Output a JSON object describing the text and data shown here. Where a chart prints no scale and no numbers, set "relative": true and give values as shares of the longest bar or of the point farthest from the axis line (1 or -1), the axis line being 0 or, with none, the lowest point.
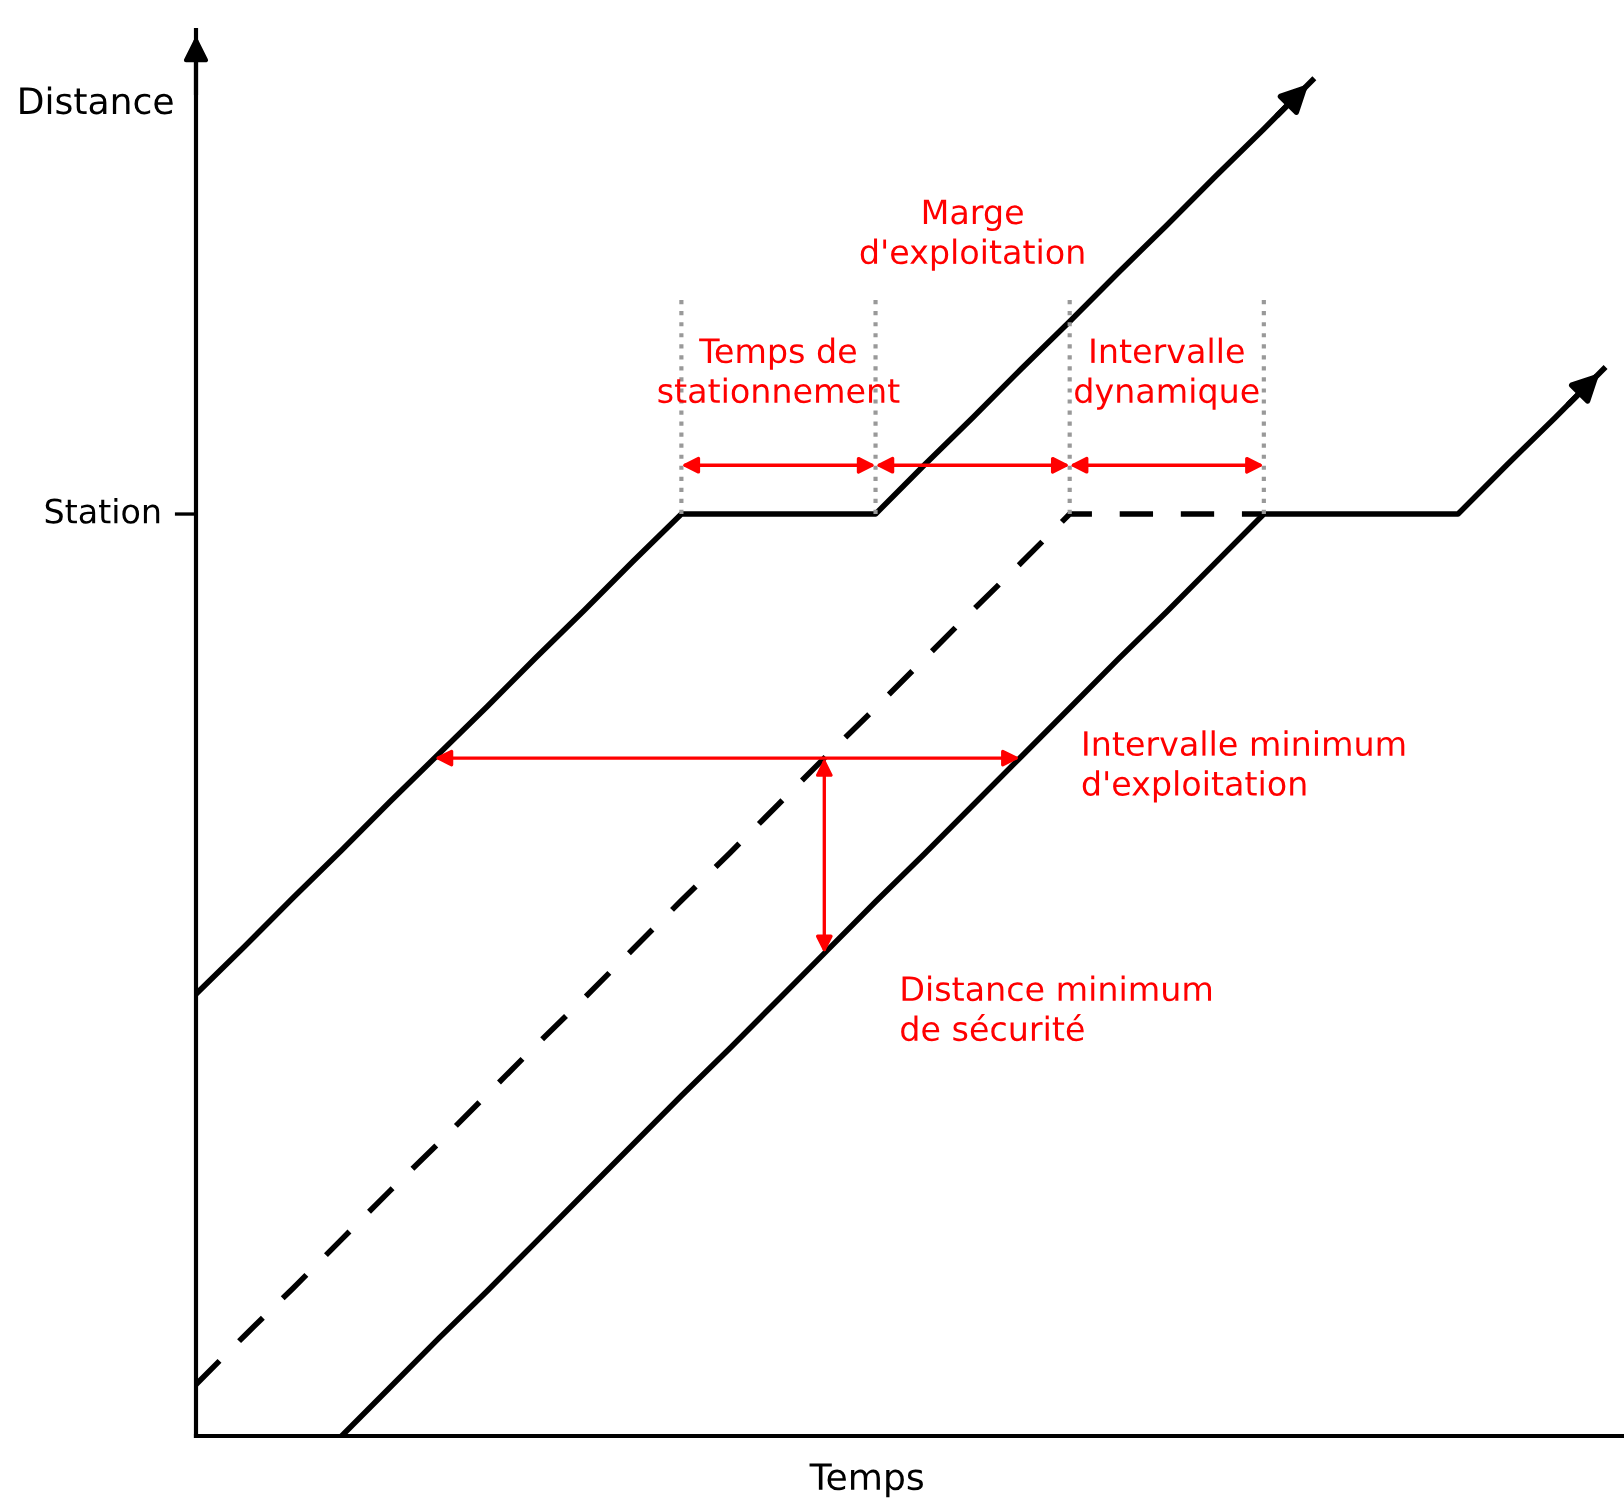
{
  "chart_data": {
    "type": "line",
    "relative": true,
    "xlabel": "Temps",
    "ylabel": "Distance",
    "grid": false,
    "categories": [
      null,
      null,
      null,
      null,
      null,
      null,
      null,
      null,
      null,
      null,
      null,
      null,
      null,
      null,
      null,
      null,
      null,
      null,
      null,
      null,
      null,
      null,
      null,
      null,
      null,
      null,
      null,
      null,
      null,
      null
    ],
    "series": [
      {
        "values": [
          0.326,
          0.361,
          0.397,
          0.432,
          0.468,
          0.503,
          0.538,
          0.574,
          0.609,
          0.645,
          0.68,
          0.68,
          0.68,
          0.68,
          0.68,
          0.716,
          0.751,
          0.787,
          0.822,
          0.858,
          0.893,
          0.929,
          0.964,
          1.0,
          null,
          null,
          null,
          null,
          null,
          null
        ],
        "color": "#000000",
        "line_style": "solid"
      },
      {
        "values": [
          0.038,
          0.074,
          0.109,
          0.145,
          0.181,
          0.216,
          0.252,
          0.288,
          0.323,
          0.359,
          0.395,
          0.43,
          0.466,
          0.502,
          0.537,
          0.573,
          0.609,
          0.644,
          0.68,
          0.68,
          0.68,
          0.68,
          0.68,
          null,
          null,
          null,
          null,
          null,
          null,
          null
        ],
        "color": "#000000",
        "line_style": "dashed"
      },
      {
        "values": [
          null,
          null,
          null,
          0,
          0.036,
          0.072,
          0.107,
          0.143,
          0.179,
          0.215,
          0.251,
          0.286,
          0.322,
          0.358,
          0.394,
          0.429,
          0.465,
          0.501,
          0.537,
          0.573,
          0.608,
          0.644,
          0.68,
          0.68,
          0.68,
          0.68,
          0.68,
          0.716,
          0.751,
          0.787
        ],
        "color": "#000000",
        "line_style": "solid"
      }
    ],
    "ref_lines": [
      {
        "axis": "y",
        "value": 0.68,
        "label": "Station"
      }
    ],
    "annotations": [
      "Temps de\nstationnement",
      "Marge\nd'exploitation",
      "Intervalle\ndynamique",
      "Intervalle minimum\nd'exploitation",
      "Distance minimum\nde sécurité"
    ]
  }
}
